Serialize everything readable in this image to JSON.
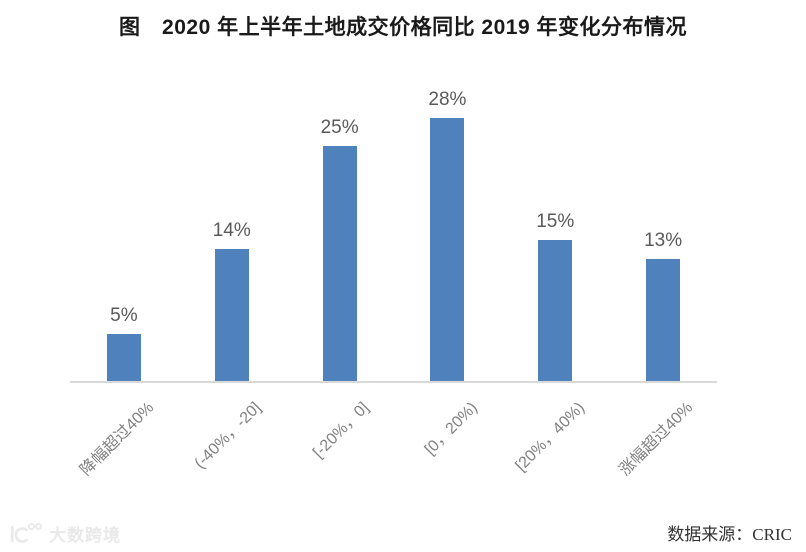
{
  "page": {
    "title": "图　2020 年上半年土地成交价格同比 2019 年变化分布情况",
    "source_note": "数据来源：CRIC",
    "watermark_text": "大数跨境"
  },
  "chart_data": {
    "type": "bar",
    "title": "2020 年上半年土地成交价格同比 2019 年变化分布情况",
    "categories": [
      "降幅超过40%",
      "(-40%，-20]",
      "[-20%，0]",
      "[0，20%)",
      "[20%，40%)",
      "涨幅超过40%"
    ],
    "values": [
      5,
      14,
      25,
      28,
      15,
      13
    ],
    "data_labels": [
      "5%",
      "14%",
      "25%",
      "28%",
      "15%",
      "13%"
    ],
    "xlabel": "",
    "ylabel": "",
    "ylim": [
      0,
      30
    ],
    "grid": false,
    "legend": false,
    "y_axis_visible": false,
    "bar_color": "#4f81bd",
    "axis_line_color": "#d9d9d9",
    "data_label_color": "#595959",
    "category_label_color": "#808080",
    "category_label_rotation_deg": 45
  }
}
